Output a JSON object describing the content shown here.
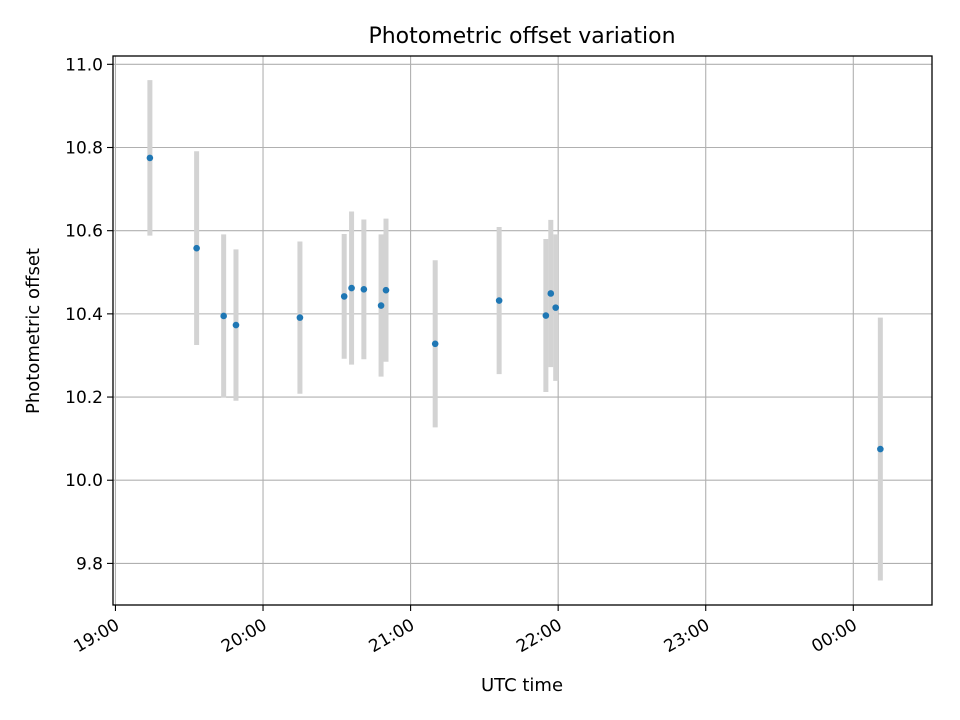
{
  "chart_data": {
    "type": "scatter",
    "title": "Photometric offset variation",
    "xlabel": "UTC time",
    "ylabel": "Photometric offset",
    "x_axis": "time",
    "xlim": [
      "19:00",
      "00:30"
    ],
    "ylim": [
      9.7,
      11.02
    ],
    "x_ticks": [
      "19:00",
      "20:00",
      "21:00",
      "22:00",
      "23:00",
      "00:00"
    ],
    "y_ticks": [
      "9.8",
      "10.0",
      "10.2",
      "10.4",
      "10.6",
      "10.8",
      "11.0"
    ],
    "grid": true,
    "marker_color": "#1f77b4",
    "errorbar_color": "#d3d3d3",
    "series": [
      {
        "points": [
          {
            "x": "19:14",
            "y": 10.775,
            "err": 0.187
          },
          {
            "x": "19:33",
            "y": 10.558,
            "err": 0.233
          },
          {
            "x": "19:44",
            "y": 10.395,
            "err": 0.196
          },
          {
            "x": "19:49",
            "y": 10.373,
            "err": 0.182
          },
          {
            "x": "20:15",
            "y": 10.391,
            "err": 0.183
          },
          {
            "x": "20:33",
            "y": 10.442,
            "err": 0.15
          },
          {
            "x": "20:36",
            "y": 10.462,
            "err": 0.184
          },
          {
            "x": "20:41",
            "y": 10.459,
            "err": 0.168
          },
          {
            "x": "20:48",
            "y": 10.42,
            "err": 0.171
          },
          {
            "x": "20:50",
            "y": 10.457,
            "err": 0.172
          },
          {
            "x": "21:10",
            "y": 10.328,
            "err": 0.201
          },
          {
            "x": "21:36",
            "y": 10.432,
            "err": 0.177
          },
          {
            "x": "21:55",
            "y": 10.396,
            "err": 0.184
          },
          {
            "x": "21:57",
            "y": 10.449,
            "err": 0.177
          },
          {
            "x": "21:59",
            "y": 10.415,
            "err": 0.176
          },
          {
            "x": "00:11",
            "y": 10.075,
            "err": 0.316
          }
        ]
      }
    ]
  }
}
